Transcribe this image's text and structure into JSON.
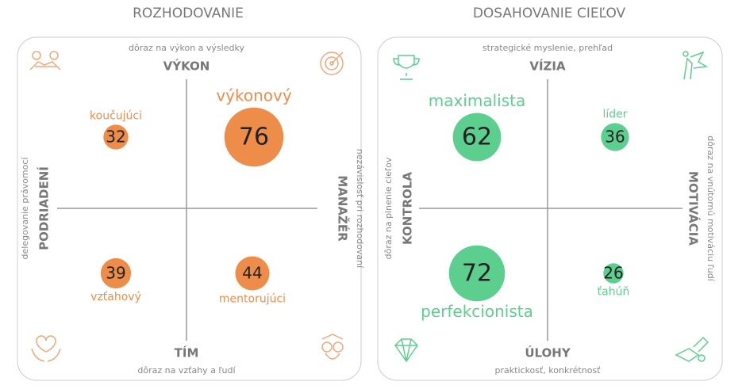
{
  "panels": [
    {
      "title": "ROZHODOVANIE",
      "color": "#ee8c4a",
      "top": {
        "note": "dôraz na výkon a výsledky",
        "label": "VÝKON"
      },
      "bottom": {
        "label": "TÍM",
        "note": "dôraz na vzťahy a ľudí"
      },
      "left": {
        "note": "delegovanie právomocí",
        "label": "PODRIADENÍ"
      },
      "right": {
        "label": "MANAŽÉR",
        "note": "nezávislosť pri rozhodovaní"
      },
      "quadrants": [
        {
          "label": "koučujúci",
          "value": 32
        },
        {
          "label": "výkonový",
          "value": 76
        },
        {
          "label": "vzťahový",
          "value": 39
        },
        {
          "label": "mentorujúci",
          "value": 44
        }
      ]
    },
    {
      "title": "DOSAHOVANIE CIEĽOV",
      "color": "#5ccf8f",
      "top": {
        "note": "strategické myslenie, prehľad",
        "label": "VÍZIA"
      },
      "bottom": {
        "label": "ÚLOHY",
        "note": "praktickosť, konkrétnosť"
      },
      "left": {
        "note": "dôraz na plnenie cieľov",
        "label": "KONTROLA"
      },
      "right": {
        "label": "MOTIVÁCIA",
        "note": "dôraz na vnútornú motiváciu ľudí"
      },
      "quadrants": [
        {
          "label": "maximalista",
          "value": 62
        },
        {
          "label": "líder",
          "value": 36
        },
        {
          "label": "perfekcionista",
          "value": 72
        },
        {
          "label": "ťahúň",
          "value": 26
        }
      ]
    }
  ]
}
